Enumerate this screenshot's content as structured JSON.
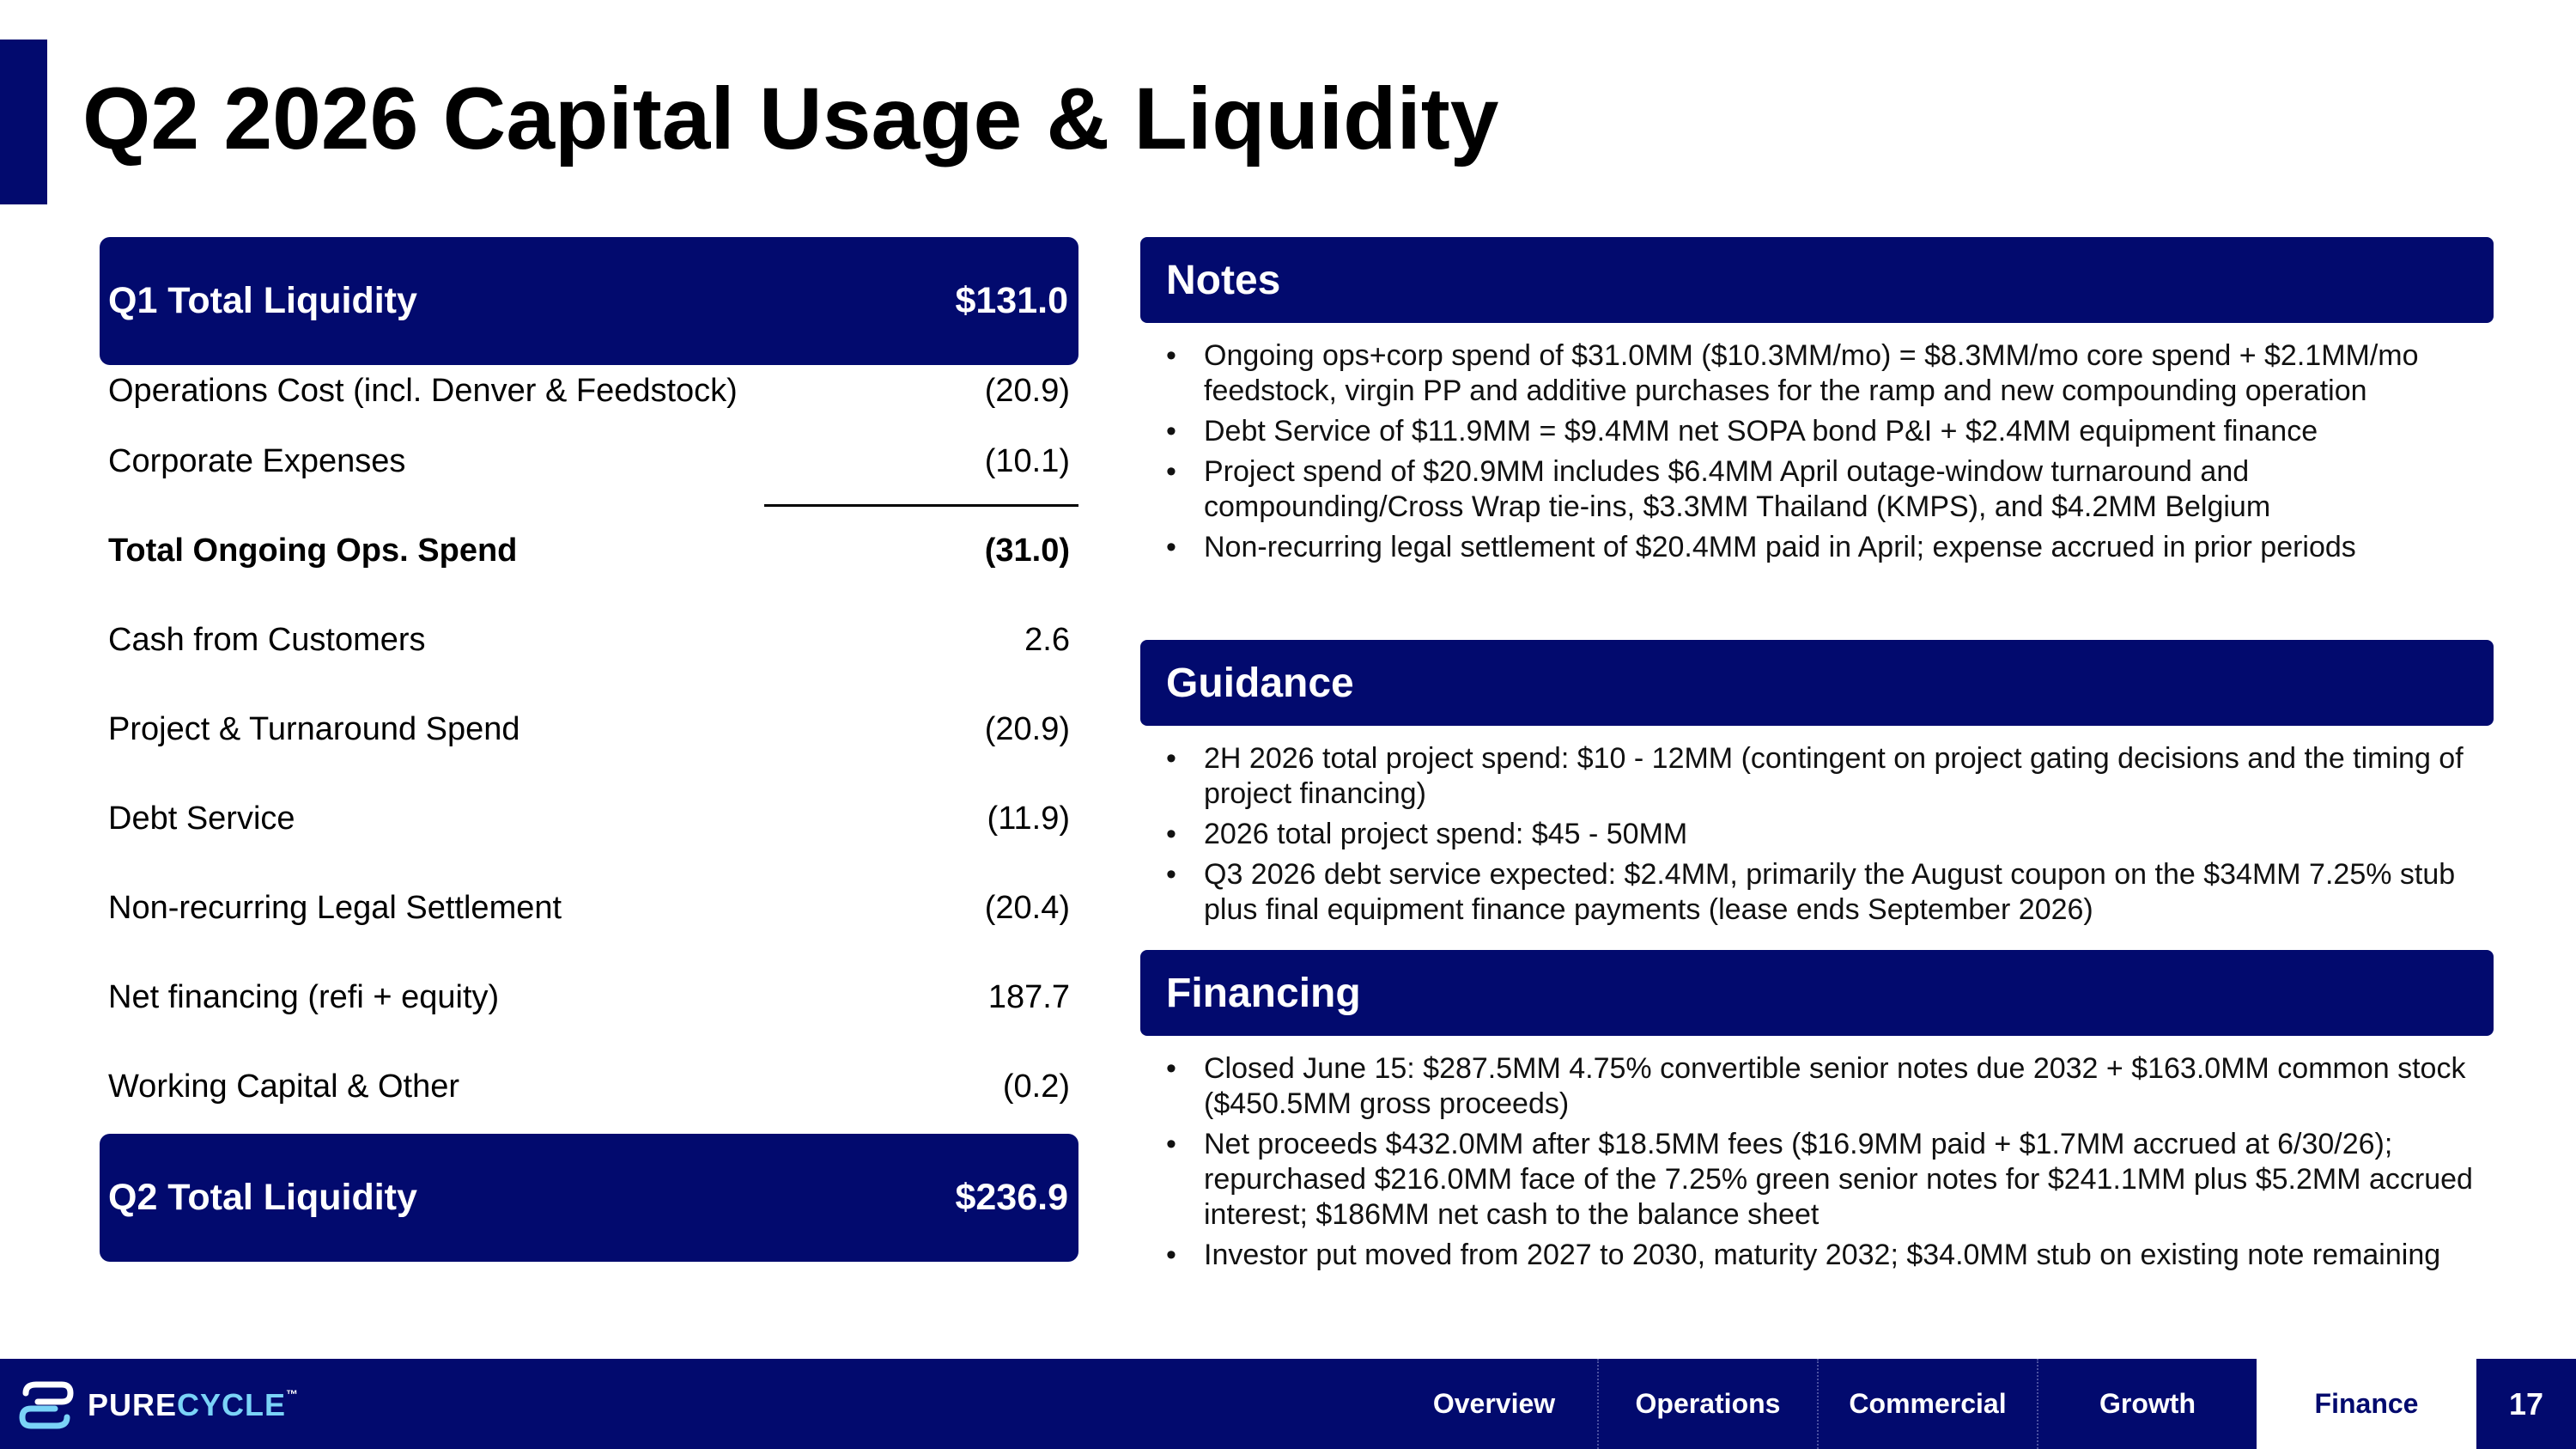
{
  "title": "Q2 2026 Capital Usage & Liquidity",
  "liquidity": {
    "start": {
      "label": "Q1 Total Liquidity",
      "value": "$131.0"
    },
    "rows": [
      {
        "label": "Operations Cost (incl. Denver & Feedstock)",
        "value": "(20.9)",
        "bold": false
      },
      {
        "label": "Corporate Expenses",
        "value": "(10.1)",
        "bold": false
      },
      {
        "label": "Total Ongoing Ops. Spend",
        "value": "(31.0)",
        "bold": true
      },
      {
        "label": "Cash from Customers",
        "value": "2.6",
        "bold": false
      },
      {
        "label": "Project & Turnaround Spend",
        "value": "(20.9)",
        "bold": false
      },
      {
        "label": "Debt Service",
        "value": "(11.9)",
        "bold": false
      },
      {
        "label": "Non-recurring Legal Settlement",
        "value": "(20.4)",
        "bold": false
      },
      {
        "label": "Net financing (refi + equity)",
        "value": "187.7",
        "bold": false
      },
      {
        "label": "Working Capital & Other",
        "value": "(0.2)",
        "bold": false
      }
    ],
    "end": {
      "label": "Q2 Total Liquidity",
      "value": "$236.9"
    }
  },
  "notes": {
    "heading": "Notes",
    "bullets": [
      "Ongoing ops+corp spend of $31.0MM ($10.3MM/mo) = $8.3MM/mo core spend + $2.1MM/mo feedstock, virgin PP and additive purchases for the ramp and new compounding operation",
      "Debt Service of $11.9MM = $9.4MM net SOPA bond P&I + $2.4MM equipment finance",
      "Project spend of $20.9MM includes $6.4MM April outage-window turnaround and compounding/Cross Wrap tie-ins, $3.3MM Thailand (KMPS), and $4.2MM Belgium",
      "Non-recurring legal settlement of $20.4MM paid in April; expense accrued in prior periods"
    ]
  },
  "guidance": {
    "heading": "Guidance",
    "bullets": [
      "2H 2026 total project spend: $10 - 12MM (contingent on project gating decisions and the timing of project financing)",
      "2026 total project spend: $45 - 50MM",
      "Q3 2026 debt service expected: $2.4MM, primarily the August coupon on the $34MM 7.25% stub plus final equipment finance payments (lease ends September 2026)"
    ]
  },
  "financing": {
    "heading": "Financing",
    "bullets": [
      "Closed June 15: $287.5MM 4.75% convertible senior notes due 2032 + $163.0MM common stock ($450.5MM gross proceeds)",
      "Net proceeds $432.0MM after $18.5MM fees ($16.9MM paid + $1.7MM accrued at 6/30/26); repurchased $216.0MM face of the 7.25% green senior notes for $241.1MM plus $5.2MM accrued interest; $186MM net cash to the balance sheet",
      "Investor put moved from 2027 to 2030, maturity 2032; $34.0MM stub on existing note remaining"
    ]
  },
  "footer": {
    "logo_pure": "PURE",
    "logo_cycle": "CYCLE",
    "logo_tm": "™",
    "nav": [
      "Overview",
      "Operations",
      "Commercial",
      "Growth",
      "Finance"
    ],
    "active_tab": "Finance",
    "page_number": "17"
  },
  "colors": {
    "brand_navy": "#020a6e",
    "logo_accent": "#7ad3f7"
  },
  "bullet_glyph": "•"
}
